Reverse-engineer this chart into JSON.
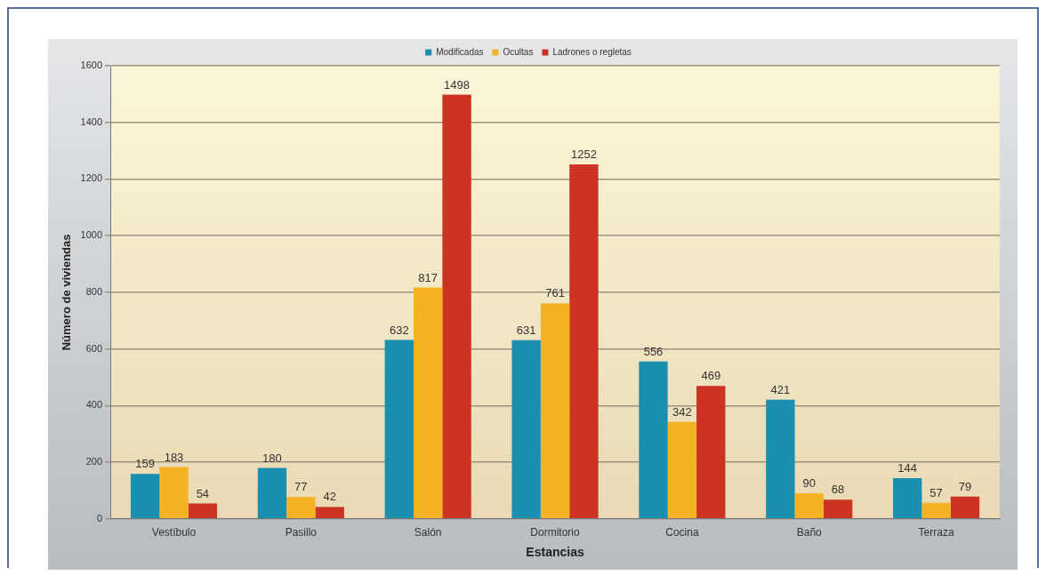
{
  "chart_data": {
    "type": "bar",
    "xlabel": "Estancias",
    "ylabel": "Número de viviendas",
    "categories": [
      "Vestíbulo",
      "Pasillo",
      "Salón",
      "Dormitorio",
      "Cocina",
      "Baño",
      "Terraza"
    ],
    "series": [
      {
        "name": "Modificadas",
        "color": "#1b8fb0",
        "values": [
          159,
          180,
          632,
          631,
          556,
          421,
          144
        ]
      },
      {
        "name": "Ocultas",
        "color": "#f5b323",
        "values": [
          183,
          77,
          817,
          761,
          342,
          90,
          57
        ]
      },
      {
        "name": "Ladrones o regletas",
        "color": "#cc3322",
        "values": [
          54,
          42,
          1498,
          1252,
          469,
          68,
          79
        ]
      }
    ],
    "ylim": [
      0,
      1600
    ],
    "yticks": [
      0,
      200,
      400,
      600,
      800,
      1000,
      1200,
      1400,
      1600
    ],
    "grid": "y",
    "legend": "top",
    "data_labels": true
  }
}
